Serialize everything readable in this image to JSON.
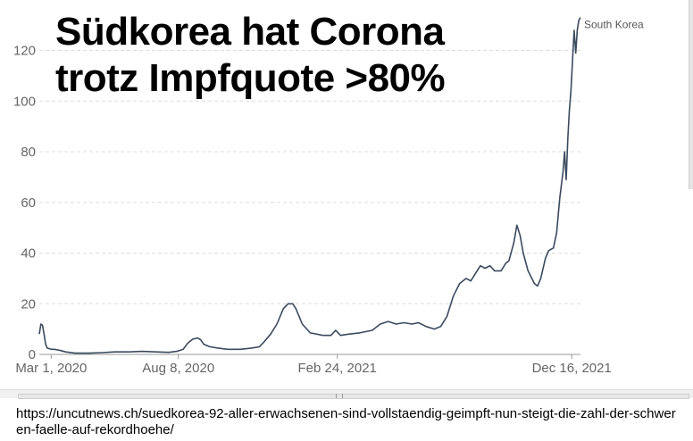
{
  "headline": {
    "line1": "Südkorea hat Corona",
    "line2": "trotz Impfquote >80%"
  },
  "source_url": "https://uncutnews.ch/suedkorea-92-aller-erwachsenen-sind-vollstaendig-geimpft-nun-steigt-die-zahl-der-schweren-faelle-auf-rekordhoehe/",
  "chart_data": {
    "type": "line",
    "title": "",
    "xlabel": "",
    "ylabel": "",
    "x_range": [
      "2020-02-15",
      "2021-12-27"
    ],
    "ylim": [
      0,
      135
    ],
    "y_ticks": [
      0,
      20,
      40,
      60,
      80,
      100,
      120
    ],
    "x_ticks": [
      {
        "date": "2020-03-01",
        "label": "Mar 1, 2020"
      },
      {
        "date": "2020-08-08",
        "label": "Aug 8, 2020"
      },
      {
        "date": "2021-02-24",
        "label": "Feb 24, 2021"
      },
      {
        "date": "2021-12-16",
        "label": "Dec 16, 2021"
      }
    ],
    "grid": "horizontal dashed",
    "series": [
      {
        "name": "South Korea",
        "color": "#3b4a5e",
        "points": [
          [
            "2020-02-15",
            8
          ],
          [
            "2020-02-17",
            12
          ],
          [
            "2020-02-19",
            11.5
          ],
          [
            "2020-02-21",
            8
          ],
          [
            "2020-02-23",
            4
          ],
          [
            "2020-02-25",
            2.5
          ],
          [
            "2020-03-01",
            2
          ],
          [
            "2020-03-05",
            2
          ],
          [
            "2020-03-09",
            1.8
          ],
          [
            "2020-03-13",
            1.5
          ],
          [
            "2020-03-19",
            1
          ],
          [
            "2020-03-31",
            0.5
          ],
          [
            "2020-04-18",
            0.5
          ],
          [
            "2020-05-04",
            0.7
          ],
          [
            "2020-05-20",
            1
          ],
          [
            "2020-06-07",
            1
          ],
          [
            "2020-06-23",
            1.2
          ],
          [
            "2020-07-11",
            1
          ],
          [
            "2020-07-27",
            0.8
          ],
          [
            "2020-08-06",
            1.2
          ],
          [
            "2020-08-14",
            2
          ],
          [
            "2020-08-20",
            4.5
          ],
          [
            "2020-08-26",
            6
          ],
          [
            "2020-09-01",
            6.5
          ],
          [
            "2020-09-05",
            5.8
          ],
          [
            "2020-09-09",
            4
          ],
          [
            "2020-09-17",
            3
          ],
          [
            "2020-09-27",
            2.5
          ],
          [
            "2020-10-09",
            2
          ],
          [
            "2020-10-25",
            2
          ],
          [
            "2020-11-08",
            2.5
          ],
          [
            "2020-11-18",
            3
          ],
          [
            "2020-11-24",
            5
          ],
          [
            "2020-12-02",
            8
          ],
          [
            "2020-12-10",
            12
          ],
          [
            "2020-12-18",
            18
          ],
          [
            "2020-12-24",
            20
          ],
          [
            "2020-12-30",
            20
          ],
          [
            "2021-01-03",
            18
          ],
          [
            "2021-01-11",
            12
          ],
          [
            "2021-01-21",
            8.5
          ],
          [
            "2021-02-06",
            7.5
          ],
          [
            "2021-02-16",
            7.5
          ],
          [
            "2021-02-22",
            9.5
          ],
          [
            "2021-02-28",
            7.5
          ],
          [
            "2021-03-10",
            8
          ],
          [
            "2021-03-24",
            8.5
          ],
          [
            "2021-04-09",
            9.5
          ],
          [
            "2021-04-19",
            12
          ],
          [
            "2021-04-29",
            13
          ],
          [
            "2021-05-09",
            12
          ],
          [
            "2021-05-19",
            12.5
          ],
          [
            "2021-05-29",
            12
          ],
          [
            "2021-06-06",
            12.5
          ],
          [
            "2021-06-16",
            11
          ],
          [
            "2021-06-26",
            10
          ],
          [
            "2021-07-04",
            11
          ],
          [
            "2021-07-12",
            15
          ],
          [
            "2021-07-20",
            23
          ],
          [
            "2021-07-28",
            28
          ],
          [
            "2021-08-05",
            30
          ],
          [
            "2021-08-11",
            29
          ],
          [
            "2021-08-17",
            32
          ],
          [
            "2021-08-23",
            35
          ],
          [
            "2021-08-29",
            34
          ],
          [
            "2021-09-04",
            35
          ],
          [
            "2021-09-10",
            33
          ],
          [
            "2021-09-18",
            33
          ],
          [
            "2021-09-24",
            36
          ],
          [
            "2021-09-28",
            37
          ],
          [
            "2021-10-04",
            44
          ],
          [
            "2021-10-08",
            51
          ],
          [
            "2021-10-12",
            47
          ],
          [
            "2021-10-16",
            40
          ],
          [
            "2021-10-22",
            33
          ],
          [
            "2021-10-30",
            28
          ],
          [
            "2021-11-03",
            27
          ],
          [
            "2021-11-07",
            30
          ],
          [
            "2021-11-13",
            38
          ],
          [
            "2021-11-17",
            41
          ],
          [
            "2021-11-23",
            42
          ],
          [
            "2021-11-27",
            48
          ],
          [
            "2021-12-01",
            62
          ],
          [
            "2021-12-05",
            72
          ],
          [
            "2021-12-07",
            80
          ],
          [
            "2021-12-09",
            69
          ],
          [
            "2021-12-11",
            85
          ],
          [
            "2021-12-13",
            96
          ],
          [
            "2021-12-15",
            104
          ],
          [
            "2021-12-17",
            116
          ],
          [
            "2021-12-19",
            128
          ],
          [
            "2021-12-21",
            119
          ],
          [
            "2021-12-23",
            128
          ],
          [
            "2021-12-25",
            132
          ],
          [
            "2021-12-27",
            133
          ]
        ]
      }
    ]
  }
}
